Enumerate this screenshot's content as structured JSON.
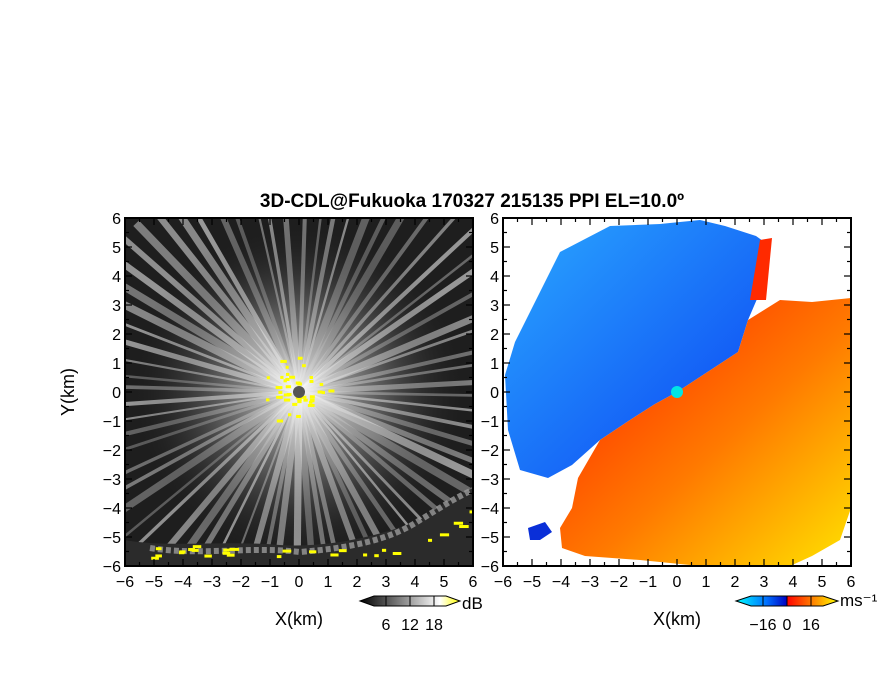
{
  "figure": {
    "title": "3D-CDL@Fukuoka 170327 215135 PPI EL=10.0º"
  },
  "chart_data": [
    {
      "type": "heatmap",
      "xlabel": "X(km)",
      "ylabel": "Y(km)",
      "xlim": [
        -6,
        6
      ],
      "ylim": [
        -6,
        6
      ],
      "xticks": [
        -6,
        -5,
        -4,
        -3,
        -2,
        -1,
        0,
        1,
        2,
        3,
        4,
        5,
        6
      ],
      "yticks": [
        -6,
        -5,
        -4,
        -3,
        -2,
        -1,
        0,
        1,
        2,
        3,
        4,
        5,
        6
      ],
      "colorbar": {
        "unit": "dB",
        "ticks": [
          6,
          12,
          18
        ],
        "colors": [
          "#000000",
          "#ffffff",
          "#ffff00"
        ]
      }
    },
    {
      "type": "heatmap",
      "xlabel": "X(km)",
      "ylabel": "",
      "xlim": [
        -6,
        6
      ],
      "ylim": [
        -6,
        6
      ],
      "xticks": [
        -6,
        -5,
        -4,
        -3,
        -2,
        -1,
        0,
        1,
        2,
        3,
        4,
        5,
        6
      ],
      "yticks": [
        -6,
        -5,
        -4,
        -3,
        -2,
        -1,
        0,
        1,
        2,
        3,
        4,
        5,
        6
      ],
      "colorbar": {
        "unit": "ms⁻¹",
        "ticks": [
          -16,
          0,
          16
        ],
        "colors": [
          "#00ffff",
          "#0070ff",
          "#0000c0",
          "#ff0000",
          "#ff8000",
          "#ffff00"
        ]
      }
    }
  ]
}
